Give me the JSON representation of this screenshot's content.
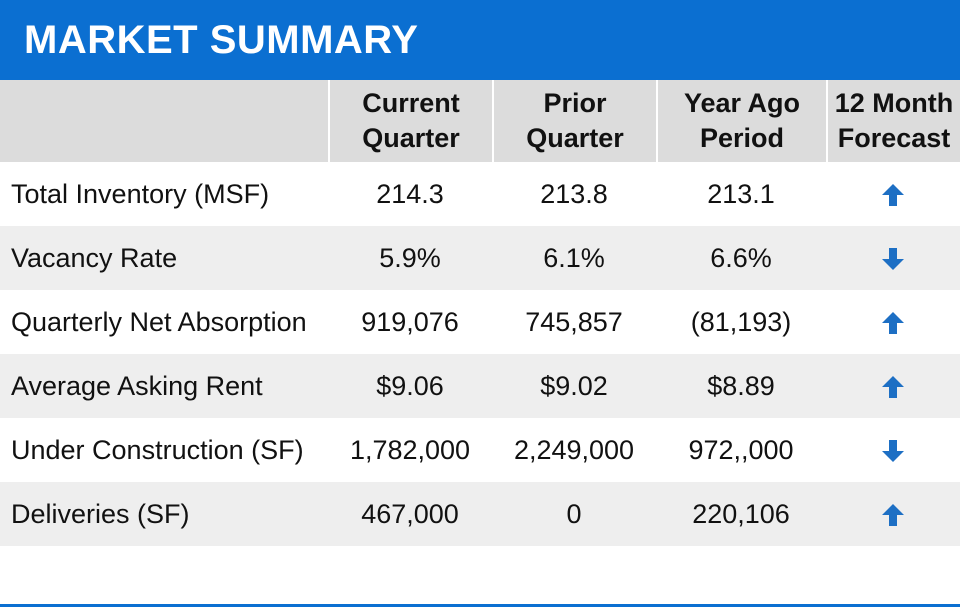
{
  "title": "MARKET SUMMARY",
  "colors": {
    "brand": "#0b6fd1",
    "header_bg": "#dcdcdc",
    "row_shade": "#eeeeee",
    "arrow": "#1d6fc4"
  },
  "columns": [
    {
      "line1": "",
      "line2": ""
    },
    {
      "line1": "Current",
      "line2": "Quarter"
    },
    {
      "line1": "Prior",
      "line2": "Quarter"
    },
    {
      "line1": "Year Ago",
      "line2": "Period"
    },
    {
      "line1": "12 Month",
      "line2": "Forecast"
    }
  ],
  "rows": [
    {
      "label": "Total Inventory (MSF)",
      "current": "214.3",
      "prior": "213.8",
      "year_ago": "213.1",
      "forecast": "up-arrow-icon"
    },
    {
      "label": "Vacancy Rate",
      "current": "5.9%",
      "prior": "6.1%",
      "year_ago": "6.6%",
      "forecast": "down-arrow-icon"
    },
    {
      "label": "Quarterly Net Absorption",
      "current": "919,076",
      "prior": "745,857",
      "year_ago": "(81,193)",
      "forecast": "up-arrow-icon"
    },
    {
      "label": "Average Asking Rent",
      "current": "$9.06",
      "prior": "$9.02",
      "year_ago": "$8.89",
      "forecast": "up-arrow-icon"
    },
    {
      "label": "Under Construction (SF)",
      "current": "1,782,000",
      "prior": "2,249,000",
      "year_ago": "972,,000",
      "forecast": "down-arrow-icon"
    },
    {
      "label": "Deliveries (SF)",
      "current": "467,000",
      "prior": "0",
      "year_ago": "220,106",
      "forecast": "up-arrow-icon"
    }
  ]
}
